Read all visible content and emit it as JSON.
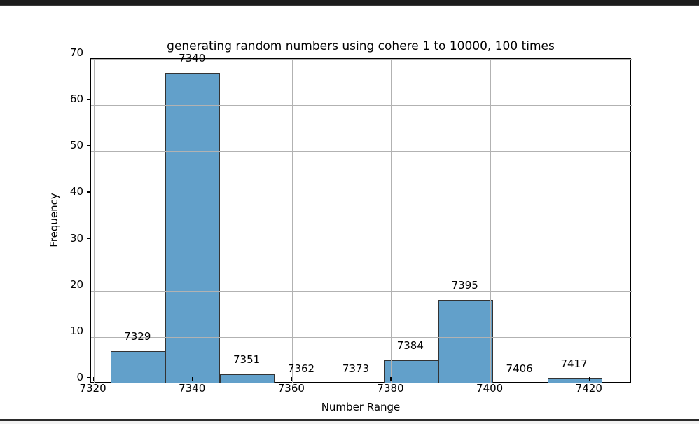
{
  "window": {
    "top_bar_color": "#1c1c1c",
    "bottom_bar_color": "#2b2b2b"
  },
  "chart_data": {
    "type": "bar",
    "title": "generating random numbers using cohere 1 to 10000, 100 times",
    "xlabel": "Number Range",
    "ylabel": "Frequency",
    "categories": [
      "7329",
      "7340",
      "7351",
      "7362",
      "7373",
      "7384",
      "7395",
      "7406",
      "7417"
    ],
    "bin_centers": [
      7329,
      7340,
      7351,
      7362,
      7373,
      7384,
      7395,
      7406,
      7417
    ],
    "bin_width": 11,
    "values": [
      7,
      67,
      2,
      0,
      0,
      5,
      18,
      0,
      1
    ],
    "bar_value_labels": [
      "7329",
      "7340",
      "7351",
      "7362",
      "7373",
      "7384",
      "7395",
      "7406",
      "7417"
    ],
    "xticks": [
      7320,
      7340,
      7360,
      7380,
      7400,
      7420
    ],
    "xtick_labels": [
      "7320",
      "7340",
      "7360",
      "7380",
      "7400",
      "7420"
    ],
    "yticks": [
      0,
      10,
      20,
      30,
      40,
      50,
      60,
      70
    ],
    "ytick_labels": [
      "0",
      "10",
      "20",
      "30",
      "40",
      "50",
      "60",
      "70"
    ],
    "xlim": [
      7319.5,
      7428.5
    ],
    "ylim": [
      0,
      70
    ],
    "grid": true,
    "legend": null,
    "colors": {
      "bar_fill": "#62a0ca",
      "bar_edge": "#333333",
      "grid": "#b2b2b2",
      "spine": "#000000",
      "text": "#000000"
    }
  }
}
